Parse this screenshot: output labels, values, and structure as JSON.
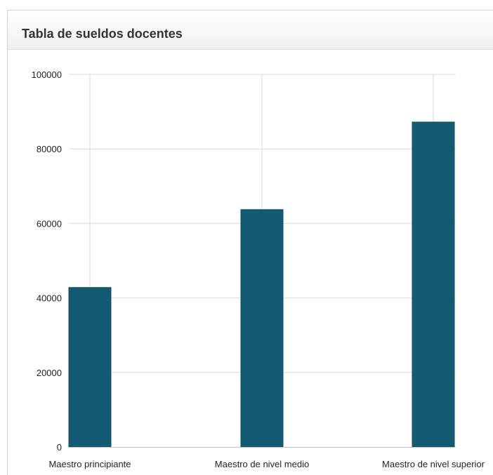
{
  "panel": {
    "title": "Tabla de sueldos docentes"
  },
  "colors": {
    "bar": "#135a72",
    "grid": "#d9d9d9",
    "axis": "#bdbdbd",
    "text": "#222222"
  },
  "chart_data": {
    "type": "bar",
    "title": "",
    "xlabel": "",
    "ylabel": "",
    "categories": [
      "Maestro principiante",
      "Maestro de nivel medio",
      "Maestro de nivel superior"
    ],
    "values": [
      42800,
      63700,
      87200
    ],
    "ylim": [
      0,
      100000
    ],
    "yticks": [
      0,
      20000,
      40000,
      60000,
      80000,
      100000
    ],
    "ytick_labels": [
      "0",
      "20000",
      "40000",
      "60000",
      "80000",
      "100000"
    ],
    "grid": true,
    "legend": "none"
  }
}
